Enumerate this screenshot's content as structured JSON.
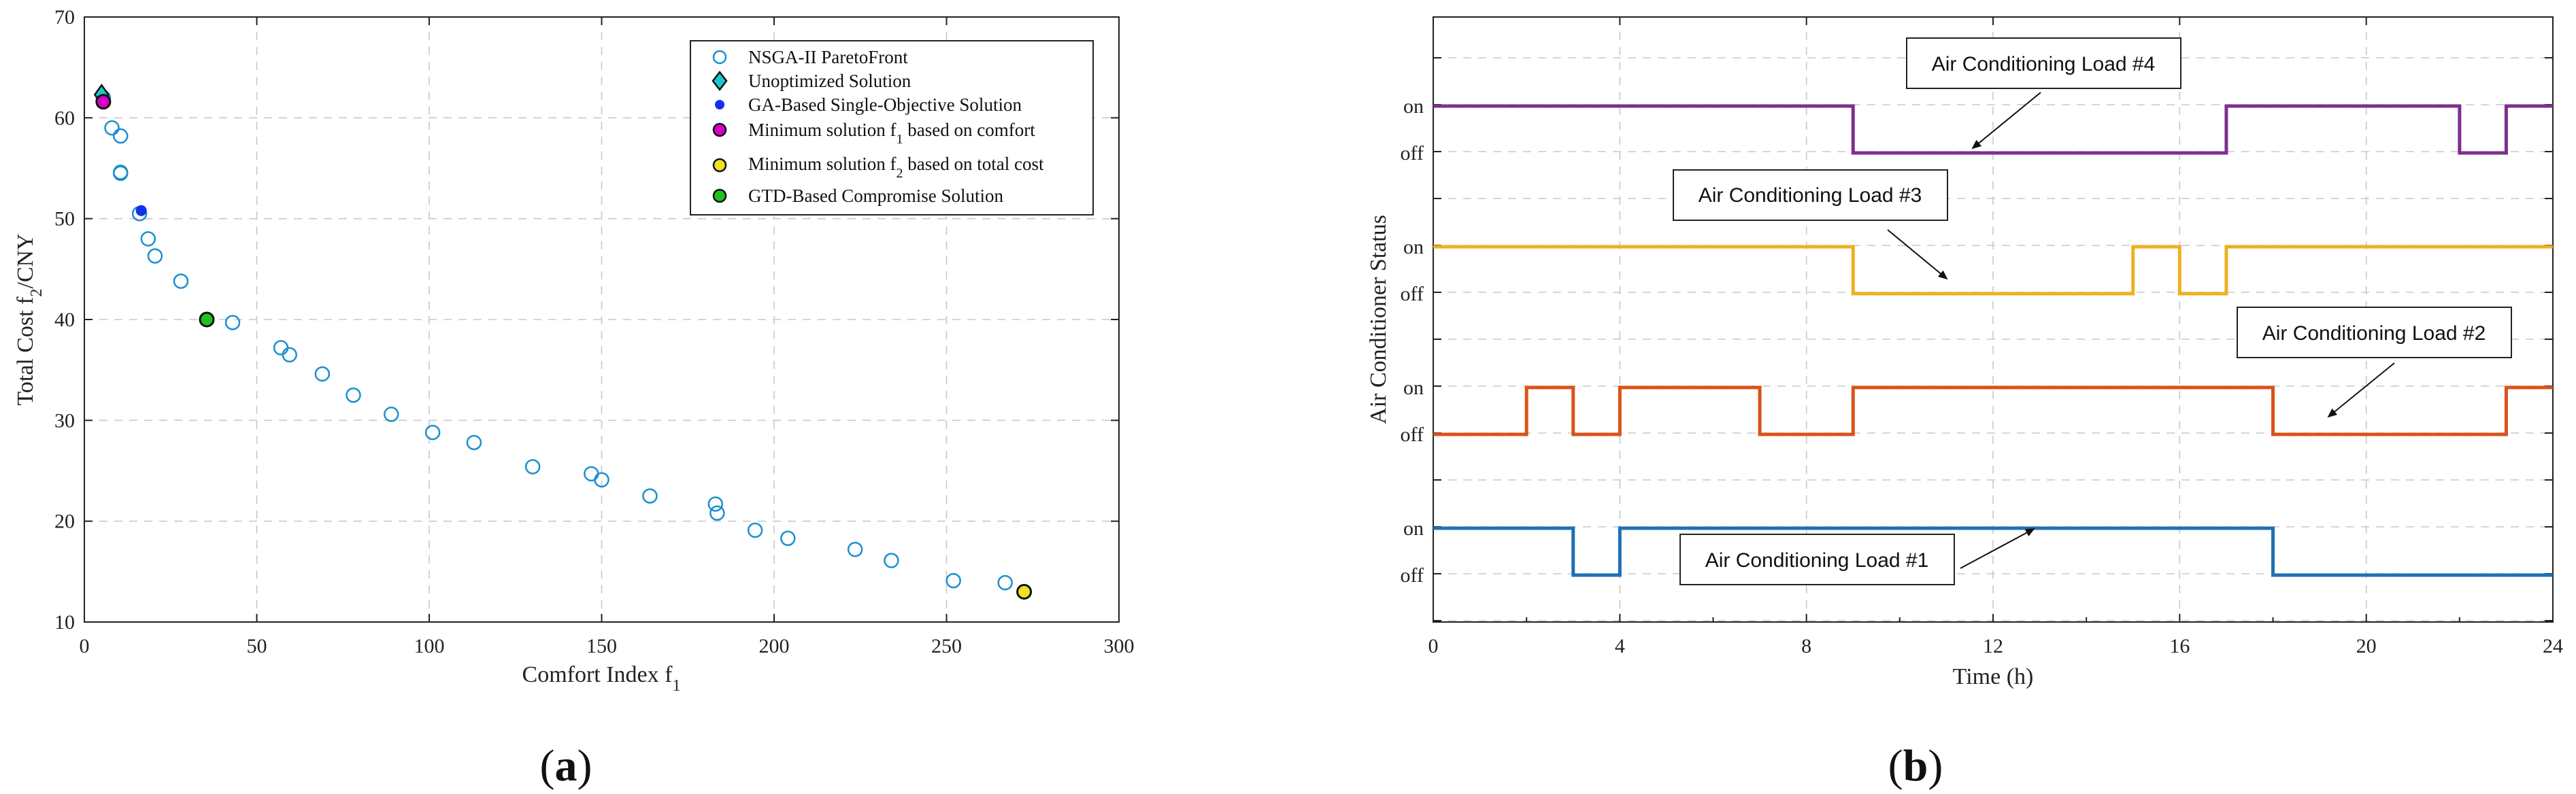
{
  "chart_data": [
    {
      "type": "scatter",
      "panel": "(a)",
      "caption_letter": "a",
      "xlabel": "Comfort Index f",
      "xlabel_sub": "1",
      "ylabel_pre": "Total Cost f",
      "ylabel_sub": "2",
      "ylabel_post": "/CNY",
      "xlim": [
        0,
        300
      ],
      "ylim": [
        10,
        70
      ],
      "xticks": [
        0,
        50,
        100,
        150,
        200,
        250,
        300
      ],
      "yticks": [
        10,
        20,
        30,
        40,
        50,
        60,
        70
      ],
      "grid": true,
      "legend_position": "top-right",
      "legend": [
        {
          "label": "NSGA-II ParetoFront",
          "marker": "open-circle",
          "color": "#1a8fd0"
        },
        {
          "label": "Unoptimized Solution",
          "marker": "diamond",
          "color": "#1ec8c8"
        },
        {
          "label": "GA-Based Single-Objective Solution",
          "marker": "dot",
          "color": "#1030f0"
        },
        {
          "label_pre": "Minimum solution f",
          "label_sub": "1",
          "label_post": " based on comfort",
          "marker": "filled-circle",
          "color": "#d400c8"
        },
        {
          "label_pre": "Minimum solution f",
          "label_sub": "2",
          "label_post": " based on total cost",
          "marker": "filled-circle",
          "color": "#f0e020"
        },
        {
          "label": "GTD-Based Compromise Solution",
          "marker": "filled-circle",
          "color": "#22c020"
        }
      ],
      "series": [
        {
          "name": "NSGA-II ParetoFront",
          "points": [
            [
              5.5,
              62
            ],
            [
              8,
              59
            ],
            [
              10.5,
              58.2
            ],
            [
              10.5,
              54.6
            ],
            [
              10.5,
              54.5
            ],
            [
              16,
              50.5
            ],
            [
              18.5,
              48
            ],
            [
              20.5,
              46.3
            ],
            [
              28,
              43.8
            ],
            [
              43,
              39.7
            ],
            [
              57,
              37.2
            ],
            [
              59.5,
              36.5
            ],
            [
              69,
              34.6
            ],
            [
              78,
              32.5
            ],
            [
              89,
              30.6
            ],
            [
              101,
              28.8
            ],
            [
              113,
              27.8
            ],
            [
              130,
              25.4
            ],
            [
              147,
              24.7
            ],
            [
              150,
              24.1
            ],
            [
              164,
              22.5
            ],
            [
              183,
              21.7
            ],
            [
              183.5,
              20.8
            ],
            [
              194.5,
              19.1
            ],
            [
              204,
              18.3
            ],
            [
              223.5,
              17.2
            ],
            [
              234,
              16.1
            ],
            [
              252,
              14.1
            ],
            [
              267,
              13.9
            ],
            [
              272.5,
              13.0
            ]
          ]
        },
        {
          "name": "Unoptimized Solution",
          "points": [
            [
              5,
              62.3
            ]
          ]
        },
        {
          "name": "GA-Based Single-Objective Solution",
          "points": [
            [
              16.5,
              50.8
            ]
          ]
        },
        {
          "name": "Minimum solution f1 based on comfort",
          "points": [
            [
              5.5,
              61.6
            ]
          ]
        },
        {
          "name": "Minimum solution f2 based on total cost",
          "points": [
            [
              272.5,
              13.0
            ]
          ]
        },
        {
          "name": "GTD-Based Compromise Solution",
          "points": [
            [
              35.5,
              40
            ]
          ]
        }
      ]
    },
    {
      "type": "line",
      "step": true,
      "panel": "(b)",
      "caption_letter": "b",
      "xlabel": "Time (h)",
      "ylabel": "Air Conditioner Status",
      "xlim": [
        0,
        24
      ],
      "xticks": [
        0,
        4,
        8,
        12,
        16,
        20,
        24
      ],
      "state_labels": {
        "on": "on",
        "off": "off"
      },
      "grid": true,
      "series": [
        {
          "name": "Air Conditioning Load #1",
          "color": "#1f6fb5",
          "times": [
            0,
            3,
            4,
            18,
            24
          ],
          "states": [
            1,
            0,
            1,
            0,
            0
          ]
        },
        {
          "name": "Air Conditioning Load #2",
          "color": "#d95319",
          "times": [
            0,
            2,
            3,
            4,
            7,
            9,
            18,
            23,
            24
          ],
          "states": [
            0,
            1,
            0,
            1,
            0,
            1,
            0,
            1,
            1
          ]
        },
        {
          "name": "Air Conditioning Load #3",
          "color": "#edb120",
          "times": [
            0,
            9,
            15,
            16,
            17,
            24
          ],
          "states": [
            1,
            0,
            1,
            0,
            1,
            1
          ]
        },
        {
          "name": "Air Conditioning Load #4",
          "color": "#7e2f8e",
          "times": [
            0,
            9,
            17,
            22,
            23,
            24
          ],
          "states": [
            1,
            0,
            1,
            0,
            1,
            1
          ]
        }
      ],
      "annotations": [
        {
          "text": "Air Conditioning Load #4",
          "series": 3,
          "arrow_to": [
            11,
            0
          ]
        },
        {
          "text": "Air Conditioning Load #3",
          "series": 2,
          "arrow_to": [
            11.2,
            0
          ]
        },
        {
          "text": "Air Conditioning Load #2",
          "series": 1,
          "arrow_to": [
            19.1,
            0
          ]
        },
        {
          "text": "Air Conditioning Load #1",
          "series": 0,
          "arrow_to": [
            12.8,
            1
          ]
        }
      ]
    }
  ]
}
